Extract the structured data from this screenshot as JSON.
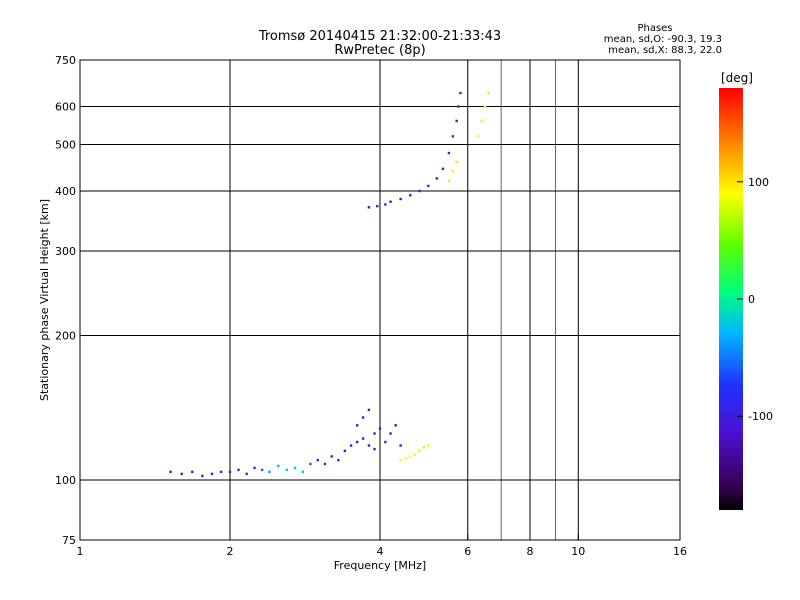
{
  "chart_data": {
    "type": "scatter",
    "title": "Tromsø 20140415 21:32:00-21:33:43",
    "subtitle": "RwPretec (8p)",
    "xlabel": "Frequency [MHz]",
    "ylabel": "Stationary phase Virtual Height [km]",
    "x_scale": "log",
    "y_scale": "log",
    "xlim": [
      1,
      16
    ],
    "ylim": [
      75,
      750
    ],
    "x_ticks": [
      "1",
      "2",
      "4",
      "6",
      "8",
      "10",
      "16"
    ],
    "y_ticks": [
      "75",
      "100",
      "200",
      "300",
      "400",
      "500",
      "600",
      "750"
    ],
    "grid": true,
    "phases_box": {
      "title": "Phases",
      "line1": "mean, sd,O: -90.3, 19.3",
      "line2": "mean, sd,X:  88.3, 22.0"
    },
    "colorbar": {
      "label": "[deg]",
      "range": [
        -180,
        180
      ],
      "ticks": [
        "100",
        "0",
        "-100"
      ],
      "colormap": "rainbow (black-purple-blue-cyan-green-yellow-red)"
    },
    "series": [
      {
        "values": [
          {
            "x": 1.52,
            "y": 104,
            "p": -100
          },
          {
            "x": 1.6,
            "y": 103,
            "p": -100
          },
          {
            "x": 1.68,
            "y": 104,
            "p": -100
          },
          {
            "x": 1.76,
            "y": 102,
            "p": -100
          },
          {
            "x": 1.84,
            "y": 103,
            "p": -100
          },
          {
            "x": 1.92,
            "y": 104,
            "p": -100
          },
          {
            "x": 2.0,
            "y": 104,
            "p": -100
          },
          {
            "x": 2.08,
            "y": 105,
            "p": -90
          },
          {
            "x": 2.16,
            "y": 103,
            "p": -80
          },
          {
            "x": 2.24,
            "y": 106,
            "p": -90
          },
          {
            "x": 2.32,
            "y": 105,
            "p": -60
          },
          {
            "x": 2.4,
            "y": 104,
            "p": -40
          },
          {
            "x": 2.5,
            "y": 107,
            "p": -30
          },
          {
            "x": 2.6,
            "y": 105,
            "p": -20
          },
          {
            "x": 2.7,
            "y": 106,
            "p": -10
          },
          {
            "x": 2.8,
            "y": 104,
            "p": -20
          },
          {
            "x": 2.9,
            "y": 108,
            "p": -60
          },
          {
            "x": 3.0,
            "y": 110,
            "p": -90
          },
          {
            "x": 3.1,
            "y": 108,
            "p": -100
          },
          {
            "x": 3.2,
            "y": 112,
            "p": -110
          },
          {
            "x": 3.3,
            "y": 110,
            "p": -100
          },
          {
            "x": 3.4,
            "y": 115,
            "p": -110
          },
          {
            "x": 3.5,
            "y": 118,
            "p": -110
          },
          {
            "x": 3.6,
            "y": 120,
            "p": -120
          },
          {
            "x": 3.7,
            "y": 122,
            "p": -100
          },
          {
            "x": 3.8,
            "y": 118,
            "p": -110
          },
          {
            "x": 3.9,
            "y": 116,
            "p": -100
          }
        ]
      },
      {
        "values": [
          {
            "x": 3.6,
            "y": 130,
            "p": -110
          },
          {
            "x": 3.7,
            "y": 135,
            "p": -110
          },
          {
            "x": 3.8,
            "y": 140,
            "p": -100
          },
          {
            "x": 3.9,
            "y": 125,
            "p": -110
          },
          {
            "x": 4.0,
            "y": 128,
            "p": -100
          },
          {
            "x": 4.1,
            "y": 120,
            "p": -100
          },
          {
            "x": 4.2,
            "y": 125,
            "p": -110
          },
          {
            "x": 4.3,
            "y": 130,
            "p": -110
          },
          {
            "x": 4.4,
            "y": 118,
            "p": -100
          }
        ]
      },
      {
        "values": [
          {
            "x": 4.4,
            "y": 110,
            "p": 85
          },
          {
            "x": 4.5,
            "y": 111,
            "p": 90
          },
          {
            "x": 4.6,
            "y": 112,
            "p": 90
          },
          {
            "x": 4.7,
            "y": 113,
            "p": 95
          },
          {
            "x": 4.8,
            "y": 115,
            "p": 100
          },
          {
            "x": 4.9,
            "y": 117,
            "p": 100
          },
          {
            "x": 5.0,
            "y": 118,
            "p": 95
          }
        ]
      },
      {
        "values": [
          {
            "x": 3.8,
            "y": 370,
            "p": -110
          },
          {
            "x": 3.95,
            "y": 372,
            "p": -100
          },
          {
            "x": 4.1,
            "y": 375,
            "p": -100
          },
          {
            "x": 4.2,
            "y": 380,
            "p": -110
          },
          {
            "x": 4.4,
            "y": 385,
            "p": -100
          },
          {
            "x": 4.6,
            "y": 392,
            "p": -100
          },
          {
            "x": 4.8,
            "y": 400,
            "p": -90
          },
          {
            "x": 5.0,
            "y": 410,
            "p": -90
          },
          {
            "x": 5.2,
            "y": 425,
            "p": -100
          },
          {
            "x": 5.35,
            "y": 445,
            "p": -100
          },
          {
            "x": 5.5,
            "y": 480,
            "p": -90
          },
          {
            "x": 5.6,
            "y": 520,
            "p": -80
          },
          {
            "x": 5.7,
            "y": 560,
            "p": -90
          },
          {
            "x": 5.75,
            "y": 600,
            "p": -90
          },
          {
            "x": 5.8,
            "y": 640,
            "p": -100
          }
        ]
      },
      {
        "values": [
          {
            "x": 5.5,
            "y": 420,
            "p": 100
          },
          {
            "x": 5.6,
            "y": 440,
            "p": 95
          },
          {
            "x": 5.7,
            "y": 460,
            "p": 100
          },
          {
            "x": 6.3,
            "y": 520,
            "p": 95
          },
          {
            "x": 6.4,
            "y": 560,
            "p": 100
          },
          {
            "x": 6.5,
            "y": 600,
            "p": 90
          },
          {
            "x": 6.6,
            "y": 640,
            "p": 100
          }
        ]
      }
    ]
  }
}
